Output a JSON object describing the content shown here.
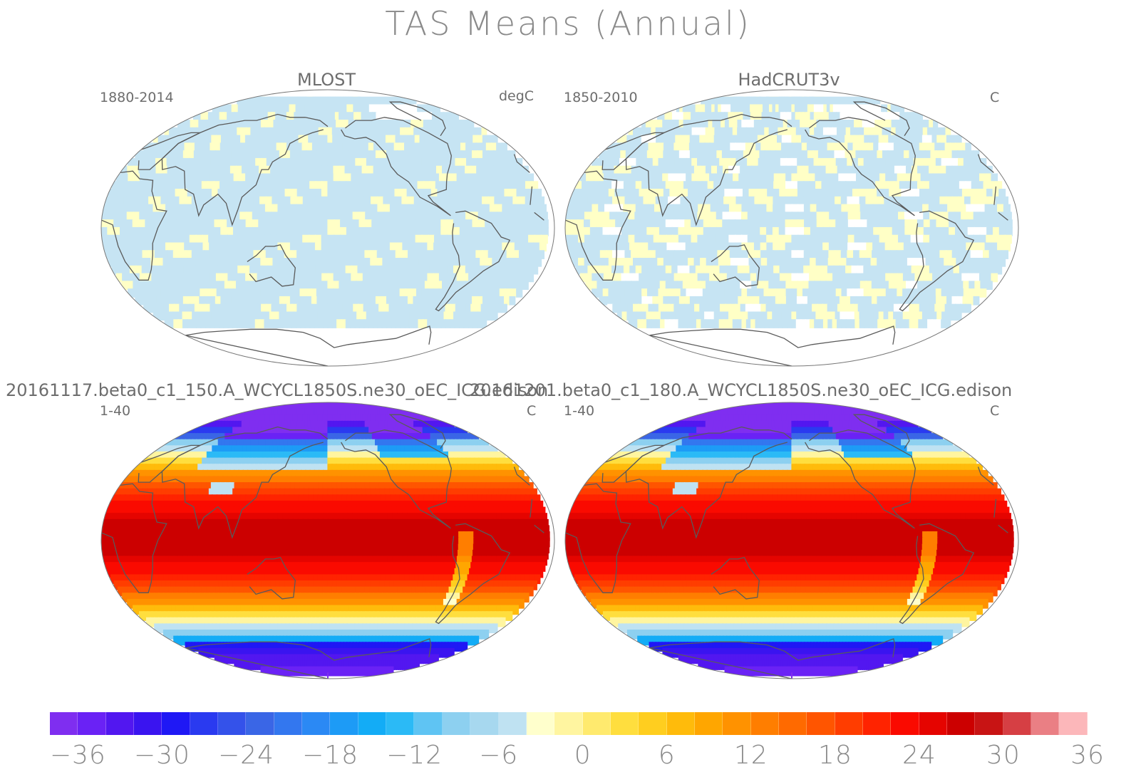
{
  "title": "TAS Means (Annual)",
  "panels": [
    {
      "title": "MLOST",
      "time": "1880-2014",
      "units": "degC",
      "kind": "obs-mlost"
    },
    {
      "title": "HadCRUT3v",
      "time": "1850-2010",
      "units": "C",
      "kind": "obs-hadcrut"
    },
    {
      "title": "20161117.beta0_c1_150.A_WCYCL1850S.ne30_oEC_ICG.edison",
      "time": "1-40",
      "units": "C",
      "kind": "model"
    },
    {
      "title": "20161201.beta0_c1_180.A_WCYCL1850S.ne30_oEC_ICG.edison",
      "time": "1-40",
      "units": "C",
      "kind": "model"
    }
  ],
  "colorbar": {
    "tick_labels": [
      "-36",
      "-30",
      "-24",
      "-18",
      "-12",
      "-6",
      "0",
      "6",
      "12",
      "18",
      "24",
      "30",
      "36"
    ],
    "colors": [
      "#7f2ef0",
      "#6a22f5",
      "#5217f0",
      "#3a14f0",
      "#1f18f5",
      "#2a3af0",
      "#3452ea",
      "#3a66e6",
      "#3377ef",
      "#2b89f4",
      "#1d9bf6",
      "#13acf6",
      "#2bbaf6",
      "#5fc4f3",
      "#8dd0f0",
      "#a7d8ef",
      "#bfe2f2",
      "#ffffcc",
      "#fff5a0",
      "#ffea6e",
      "#ffde3e",
      "#ffce1f",
      "#ffbb0b",
      "#ffa600",
      "#ff9200",
      "#ff7e00",
      "#ff6a00",
      "#ff5500",
      "#ff3d00",
      "#ff2300",
      "#fa0a00",
      "#e50400",
      "#cc0000",
      "#c81414",
      "#d63f44",
      "#ea7f84",
      "#fcb7ba"
    ]
  },
  "map_colors": {
    "land_outline": "#5a5a5a",
    "ocean_light_blue": "#c6e4f3",
    "pale_yellow": "#ffffc6",
    "frame": "#777777"
  }
}
